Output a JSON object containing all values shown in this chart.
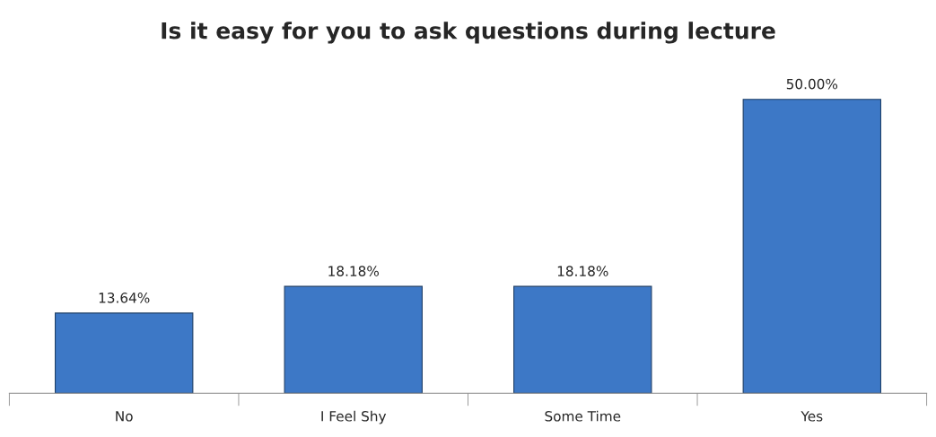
{
  "chart_data": {
    "type": "bar",
    "title": "Is it easy for you to ask questions during lecture",
    "categories": [
      "No",
      "I Feel Shy",
      "Some Time",
      "Yes"
    ],
    "values": [
      13.64,
      18.18,
      18.18,
      50.0
    ],
    "value_labels": [
      "13.64%",
      "18.18%",
      "18.18%",
      "50.00%"
    ],
    "color": "#3d78c6",
    "grid": false,
    "legend": false
  }
}
